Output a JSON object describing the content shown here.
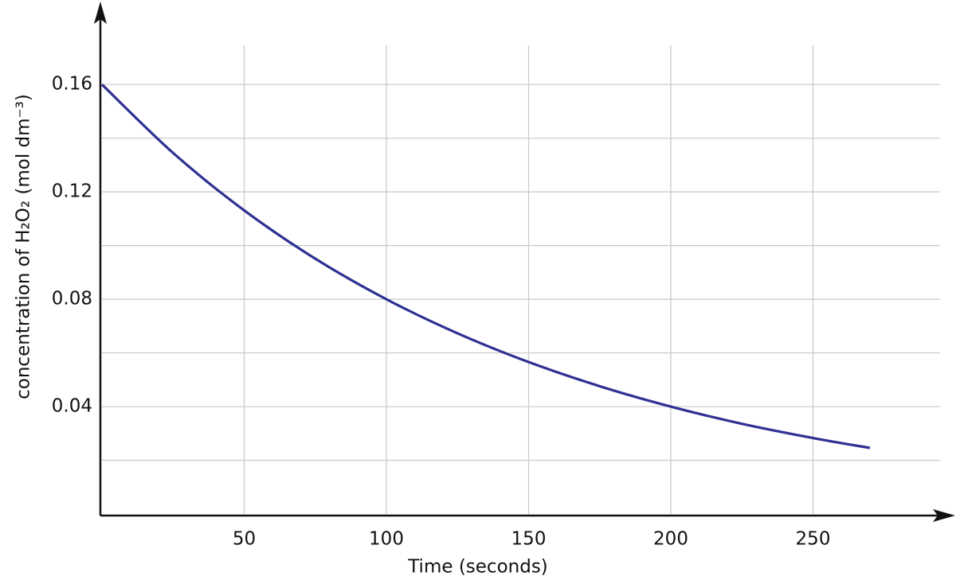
{
  "chart_data": {
    "type": "line",
    "x_label": "Time (seconds)",
    "y_label": "concentration  of  H₂O₂ (mol dm⁻³)",
    "x": [
      0,
      25,
      50,
      75,
      100,
      125,
      150,
      175,
      200,
      225,
      250,
      270
    ],
    "series": [
      {
        "color": "#2e3192",
        "values": [
          0.16,
          0.1345,
          0.1131,
          0.0951,
          0.08,
          0.0673,
          0.0566,
          0.0476,
          0.04,
          0.0336,
          0.0283,
          0.0246
        ]
      }
    ],
    "xlim": [
      0,
      300
    ],
    "ylim": [
      0,
      0.19
    ],
    "xticks": [
      50,
      100,
      150,
      200,
      250
    ],
    "yticks": [
      0.04,
      0.08,
      0.12,
      0.16
    ],
    "yticks_minor": [
      0.02,
      0.06,
      0.1,
      0.14
    ],
    "grid": true
  }
}
